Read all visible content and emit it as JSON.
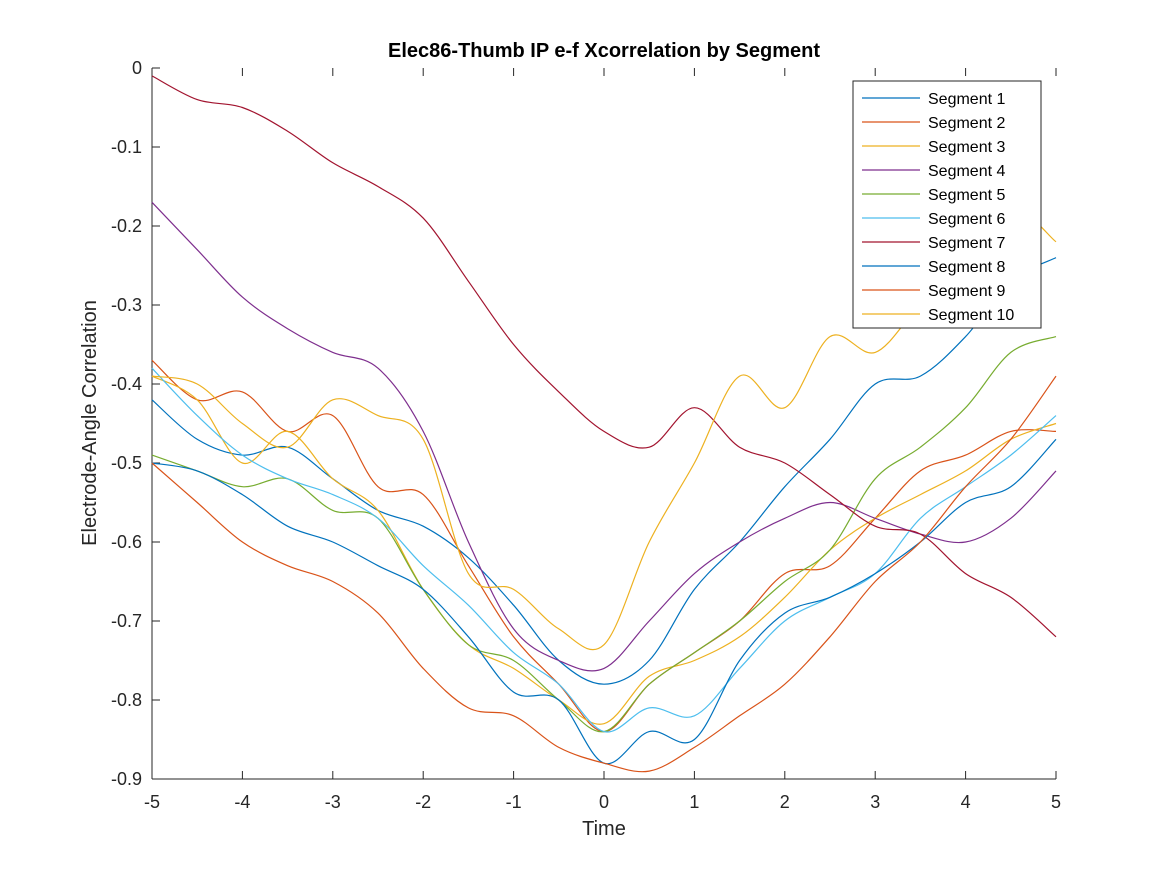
{
  "chart_data": {
    "type": "line",
    "title": "Elec86-Thumb IP e-f Xcorrelation by Segment",
    "xlabel": "Time",
    "ylabel": "Electrode-Angle Correlation",
    "xlim": [
      -5,
      5
    ],
    "ylim": [
      -0.9,
      0
    ],
    "xticks": [
      -5,
      -4,
      -3,
      -2,
      -1,
      0,
      1,
      2,
      3,
      4,
      5
    ],
    "yticks": [
      0,
      -0.1,
      -0.2,
      -0.3,
      -0.4,
      -0.5,
      -0.6,
      -0.7,
      -0.8,
      -0.9
    ],
    "xtick_labels": [
      "-5",
      "-4",
      "-3",
      "-2",
      "-1",
      "0",
      "1",
      "2",
      "3",
      "4",
      "5"
    ],
    "ytick_labels": [
      "0",
      "-0.1",
      "-0.2",
      "-0.3",
      "-0.4",
      "-0.5",
      "-0.6",
      "-0.7",
      "-0.8",
      "-0.9"
    ],
    "grid": false,
    "legend_position": "top-right",
    "x": [
      -5,
      -4.5,
      -4,
      -3.5,
      -3,
      -2.5,
      -2,
      -1.5,
      -1,
      -0.5,
      0,
      0.5,
      1,
      1.5,
      2,
      2.5,
      3,
      3.5,
      4,
      4.5,
      5
    ],
    "series": [
      {
        "name": "Segment 1",
        "color": "#0072BD",
        "values": [
          -0.42,
          -0.47,
          -0.49,
          -0.48,
          -0.52,
          -0.56,
          -0.58,
          -0.62,
          -0.68,
          -0.75,
          -0.78,
          -0.75,
          -0.66,
          -0.6,
          -0.53,
          -0.47,
          -0.4,
          -0.39,
          -0.34,
          -0.27,
          -0.24
        ]
      },
      {
        "name": "Segment 2",
        "color": "#D95319",
        "values": [
          -0.37,
          -0.42,
          -0.41,
          -0.46,
          -0.44,
          -0.53,
          -0.54,
          -0.63,
          -0.72,
          -0.78,
          -0.84,
          -0.78,
          -0.74,
          -0.7,
          -0.64,
          -0.63,
          -0.57,
          -0.51,
          -0.49,
          -0.46,
          -0.46
        ]
      },
      {
        "name": "Segment 3",
        "color": "#EDB120",
        "values": [
          -0.39,
          -0.42,
          -0.5,
          -0.46,
          -0.52,
          -0.56,
          -0.66,
          -0.73,
          -0.76,
          -0.8,
          -0.83,
          -0.77,
          -0.75,
          -0.72,
          -0.67,
          -0.61,
          -0.57,
          -0.54,
          -0.51,
          -0.47,
          -0.45
        ]
      },
      {
        "name": "Segment 4",
        "color": "#7E2F8E",
        "values": [
          -0.17,
          -0.23,
          -0.29,
          -0.33,
          -0.36,
          -0.38,
          -0.46,
          -0.6,
          -0.71,
          -0.75,
          -0.76,
          -0.7,
          -0.64,
          -0.6,
          -0.57,
          -0.55,
          -0.57,
          -0.59,
          -0.6,
          -0.57,
          -0.51
        ]
      },
      {
        "name": "Segment 5",
        "color": "#77AC30",
        "values": [
          -0.49,
          -0.51,
          -0.53,
          -0.52,
          -0.56,
          -0.57,
          -0.66,
          -0.73,
          -0.75,
          -0.8,
          -0.84,
          -0.78,
          -0.74,
          -0.7,
          -0.65,
          -0.61,
          -0.52,
          -0.48,
          -0.43,
          -0.36,
          -0.34
        ]
      },
      {
        "name": "Segment 6",
        "color": "#4DBEEE",
        "values": [
          -0.38,
          -0.44,
          -0.49,
          -0.52,
          -0.54,
          -0.57,
          -0.63,
          -0.68,
          -0.74,
          -0.78,
          -0.84,
          -0.81,
          -0.82,
          -0.76,
          -0.7,
          -0.67,
          -0.64,
          -0.57,
          -0.53,
          -0.49,
          -0.44
        ]
      },
      {
        "name": "Segment 7",
        "color": "#A2142F",
        "values": [
          -0.01,
          -0.04,
          -0.05,
          -0.08,
          -0.12,
          -0.15,
          -0.19,
          -0.27,
          -0.35,
          -0.41,
          -0.46,
          -0.48,
          -0.43,
          -0.48,
          -0.5,
          -0.54,
          -0.58,
          -0.59,
          -0.64,
          -0.67,
          -0.72
        ]
      },
      {
        "name": "Segment 8",
        "color": "#0072BD",
        "values": [
          -0.5,
          -0.51,
          -0.54,
          -0.58,
          -0.6,
          -0.63,
          -0.66,
          -0.72,
          -0.79,
          -0.8,
          -0.88,
          -0.84,
          -0.85,
          -0.75,
          -0.69,
          -0.67,
          -0.64,
          -0.6,
          -0.55,
          -0.53,
          -0.47
        ]
      },
      {
        "name": "Segment 9",
        "color": "#D95319",
        "values": [
          -0.5,
          -0.55,
          -0.6,
          -0.63,
          -0.65,
          -0.69,
          -0.76,
          -0.81,
          -0.82,
          -0.86,
          -0.88,
          -0.89,
          -0.86,
          -0.82,
          -0.78,
          -0.72,
          -0.65,
          -0.6,
          -0.53,
          -0.47,
          -0.39
        ]
      },
      {
        "name": "Segment 10",
        "color": "#EDB120",
        "values": [
          -0.39,
          -0.4,
          -0.45,
          -0.48,
          -0.42,
          -0.44,
          -0.47,
          -0.64,
          -0.66,
          -0.71,
          -0.73,
          -0.6,
          -0.5,
          -0.39,
          -0.43,
          -0.34,
          -0.36,
          -0.3,
          -0.26,
          -0.18,
          -0.22
        ]
      }
    ]
  }
}
